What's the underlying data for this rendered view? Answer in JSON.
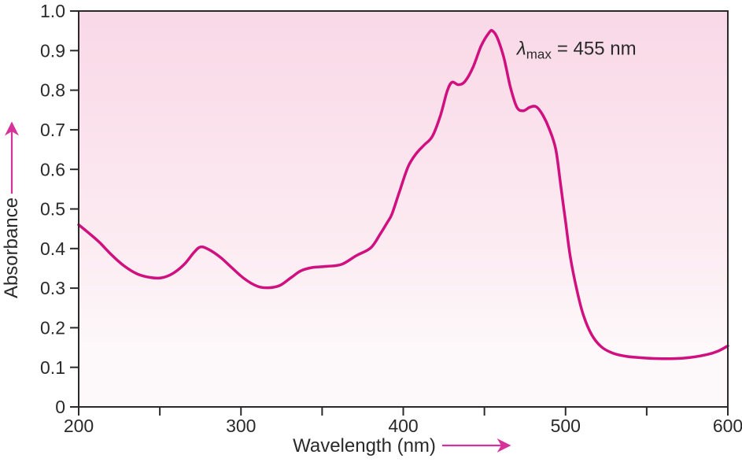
{
  "colors": {
    "curve": "#d1107f",
    "arrow": "#d5339a",
    "axis": "#2a2a2a",
    "text": "#2a2a2a",
    "bg_top": "#f9d8e7",
    "bg_mid": "#fceaf1",
    "bg_bottom": "#fdf8fa"
  },
  "chart_data": {
    "type": "line",
    "xlabel": "Wavelength (nm)",
    "ylabel": "Absorbance",
    "xlim": [
      200,
      600
    ],
    "ylim": [
      0,
      1.0
    ],
    "x_major_ticks": [
      200,
      300,
      400,
      500,
      600
    ],
    "x_minor_ticks": [
      250,
      350,
      450,
      550
    ],
    "y_ticks": [
      0,
      0.1,
      0.2,
      0.3,
      0.4,
      0.5,
      0.6,
      0.7,
      0.8,
      0.9,
      1.0
    ],
    "y_tick_labels": [
      "0",
      "0.1",
      "0.2",
      "0.3",
      "0.4",
      "0.5",
      "0.6",
      "0.7",
      "0.8",
      "0.9",
      "1.0"
    ],
    "grid": false,
    "legend": false,
    "lambda_max_nm": 455,
    "absorbance_at_max": 0.95,
    "annotation": {
      "lambda": "λ",
      "sub": "max",
      "rest": "= 455 nm",
      "x_nm": 470,
      "y_abs": 0.89
    },
    "series": [
      {
        "name": "absorbance-curve",
        "points": [
          [
            200,
            0.46
          ],
          [
            206,
            0.44
          ],
          [
            213,
            0.415
          ],
          [
            220,
            0.385
          ],
          [
            228,
            0.356
          ],
          [
            236,
            0.336
          ],
          [
            244,
            0.327
          ],
          [
            251,
            0.326
          ],
          [
            258,
            0.337
          ],
          [
            265,
            0.36
          ],
          [
            271,
            0.39
          ],
          [
            275,
            0.404
          ],
          [
            280,
            0.398
          ],
          [
            287,
            0.379
          ],
          [
            294,
            0.353
          ],
          [
            302,
            0.324
          ],
          [
            310,
            0.305
          ],
          [
            317,
            0.301
          ],
          [
            324,
            0.307
          ],
          [
            331,
            0.327
          ],
          [
            337,
            0.344
          ],
          [
            344,
            0.352
          ],
          [
            353,
            0.355
          ],
          [
            362,
            0.36
          ],
          [
            371,
            0.382
          ],
          [
            380,
            0.402
          ],
          [
            386,
            0.438
          ],
          [
            390,
            0.465
          ],
          [
            393,
            0.487
          ],
          [
            398,
            0.548
          ],
          [
            403,
            0.607
          ],
          [
            408,
            0.64
          ],
          [
            413,
            0.662
          ],
          [
            418,
            0.684
          ],
          [
            423,
            0.737
          ],
          [
            427,
            0.797
          ],
          [
            430,
            0.82
          ],
          [
            434,
            0.814
          ],
          [
            438,
            0.822
          ],
          [
            443,
            0.858
          ],
          [
            448,
            0.912
          ],
          [
            453,
            0.946
          ],
          [
            455,
            0.95
          ],
          [
            458,
            0.932
          ],
          [
            462,
            0.882
          ],
          [
            466,
            0.808
          ],
          [
            470,
            0.757
          ],
          [
            474,
            0.748
          ],
          [
            478,
            0.757
          ],
          [
            482,
            0.758
          ],
          [
            486,
            0.737
          ],
          [
            490,
            0.702
          ],
          [
            494,
            0.65
          ],
          [
            497,
            0.56
          ],
          [
            500,
            0.468
          ],
          [
            503,
            0.378
          ],
          [
            507,
            0.295
          ],
          [
            511,
            0.232
          ],
          [
            516,
            0.183
          ],
          [
            522,
            0.152
          ],
          [
            529,
            0.136
          ],
          [
            537,
            0.128
          ],
          [
            547,
            0.124
          ],
          [
            557,
            0.122
          ],
          [
            567,
            0.122
          ],
          [
            577,
            0.125
          ],
          [
            587,
            0.132
          ],
          [
            594,
            0.141
          ],
          [
            600,
            0.154
          ]
        ]
      }
    ]
  }
}
